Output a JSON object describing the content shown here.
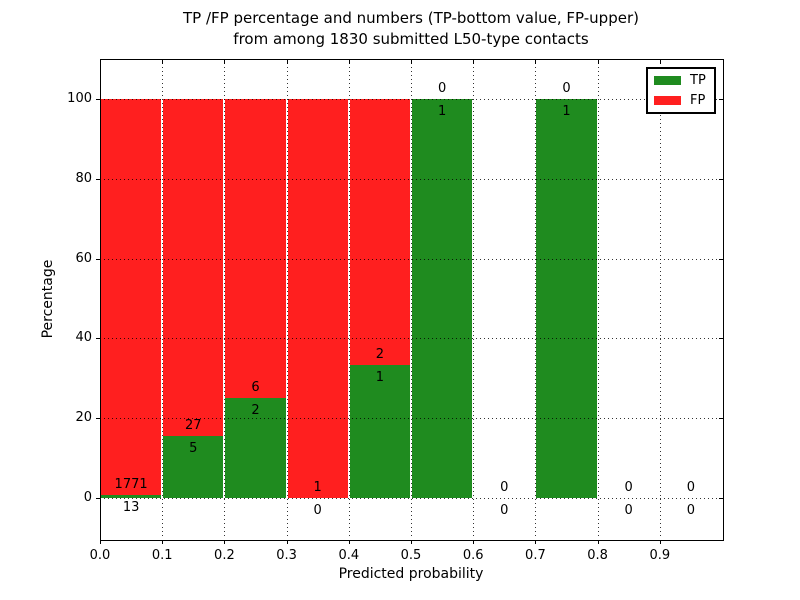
{
  "figure": {
    "title_line1": "TP /FP percentage and numbers (TP-bottom value, FP-upper)",
    "title_line2": "from among 1830 submitted L50-type contacts"
  },
  "chart_data": {
    "type": "bar",
    "stacked": true,
    "title": "TP /FP percentage and numbers (TP-bottom value, FP-upper)\nfrom among 1830 submitted L50-type contacts",
    "xlabel": "Predicted probability",
    "ylabel": "Percentage",
    "total_contacts": 1830,
    "xlim": [
      0.0,
      1.0
    ],
    "ylim": [
      -10.3,
      110.0
    ],
    "x_ticks": [
      0.0,
      0.1,
      0.2,
      0.3,
      0.4,
      0.5,
      0.6,
      0.7,
      0.8,
      0.9
    ],
    "x_tick_labels": [
      "0.0",
      "0.1",
      "0.2",
      "0.3",
      "0.4",
      "0.5",
      "0.6",
      "0.7",
      "0.8",
      "0.9"
    ],
    "y_ticks": [
      0,
      20,
      40,
      60,
      80,
      100
    ],
    "y_tick_labels": [
      "0",
      "20",
      "40",
      "60",
      "80",
      "100"
    ],
    "grid": "dotted",
    "colors": {
      "tp": "#1f8b1f",
      "fp": "#ff1f1f"
    },
    "legend": {
      "position": "upper right",
      "entries": [
        {
          "label": "TP",
          "color": "#1f8b1f"
        },
        {
          "label": "FP",
          "color": "#ff1f1f"
        }
      ]
    },
    "bins": [
      {
        "range": [
          0.0,
          0.1
        ],
        "tp": 13,
        "fp": 1771
      },
      {
        "range": [
          0.1,
          0.2
        ],
        "tp": 5,
        "fp": 27
      },
      {
        "range": [
          0.2,
          0.3
        ],
        "tp": 2,
        "fp": 6
      },
      {
        "range": [
          0.3,
          0.4
        ],
        "tp": 0,
        "fp": 1
      },
      {
        "range": [
          0.4,
          0.5
        ],
        "tp": 1,
        "fp": 2
      },
      {
        "range": [
          0.5,
          0.6
        ],
        "tp": 1,
        "fp": 0
      },
      {
        "range": [
          0.6,
          0.7
        ],
        "tp": 0,
        "fp": 0
      },
      {
        "range": [
          0.7,
          0.8
        ],
        "tp": 1,
        "fp": 0
      },
      {
        "range": [
          0.8,
          0.9
        ],
        "tp": 0,
        "fp": 0
      },
      {
        "range": [
          0.9,
          1.0
        ],
        "tp": 0,
        "fp": 0
      }
    ]
  }
}
